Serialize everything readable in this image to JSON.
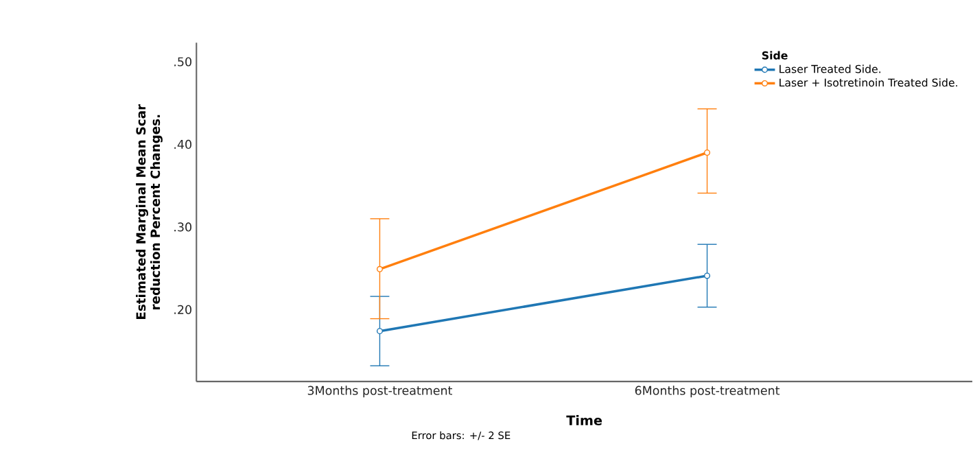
{
  "chart_data": {
    "type": "line",
    "categories": [
      "3Months post-treatment",
      "6Months post-treatment"
    ],
    "xlabel": "Time",
    "ylabel": "Estimated Marginal Mean Scar reduction Percent Changes.",
    "legend_title": "Side",
    "series": [
      {
        "name": "Laser Treated Side.",
        "color": "#1f77b4",
        "values": [
          0.174,
          0.241
        ],
        "errors": [
          [
            0.132,
            0.216
          ],
          [
            0.203,
            0.279
          ]
        ]
      },
      {
        "name": "Laser + Isotretinoin Treated Side.",
        "color": "#ff7f0e",
        "values": [
          0.249,
          0.39
        ],
        "errors": [
          [
            0.189,
            0.31
          ],
          [
            0.341,
            0.443
          ]
        ]
      }
    ],
    "ylim": [
      0.113,
      0.523
    ],
    "yticks": [
      {
        "value": 0.2,
        "label": ".20"
      },
      {
        "value": 0.3,
        "label": ".30"
      },
      {
        "value": 0.4,
        "label": ".40"
      },
      {
        "value": 0.5,
        "label": ".50"
      }
    ],
    "marker": "circle",
    "line_style": "solid",
    "grid": false,
    "legend": "top right",
    "annotations": [
      "Error bars: +/- 2 SE"
    ]
  }
}
